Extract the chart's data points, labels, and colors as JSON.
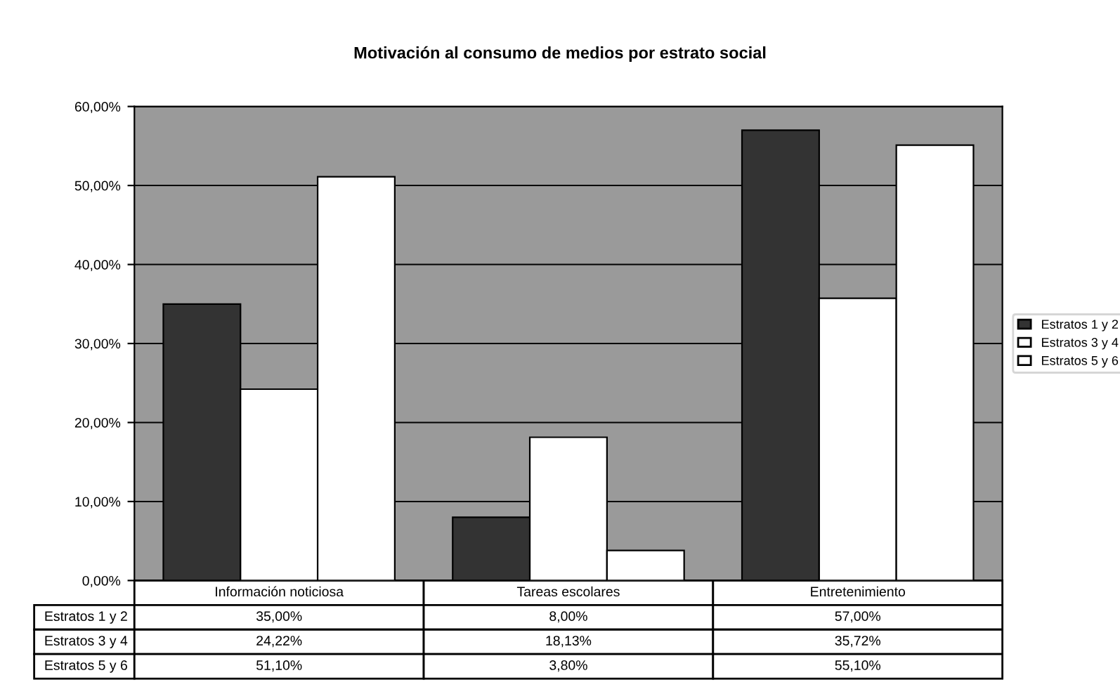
{
  "chart_data": {
    "type": "bar",
    "title": "Motivación al consumo de medios por estrato social",
    "categories": [
      "Información noticiosa",
      "Tareas escolares",
      "Entretenimiento"
    ],
    "series": [
      {
        "name": "Estratos 1 y 2",
        "color": "#333333",
        "values": [
          35.0,
          8.0,
          57.0
        ],
        "value_labels": [
          "35,00%",
          "8,00%",
          "57,00%"
        ]
      },
      {
        "name": "Estratos 3 y 4",
        "color": "#ffffff",
        "values": [
          24.22,
          18.13,
          35.72
        ],
        "value_labels": [
          "24,22%",
          "18,13%",
          "35,72%"
        ]
      },
      {
        "name": "Estratos 5 y 6",
        "color": "#ffffff",
        "values": [
          51.1,
          3.8,
          55.1
        ],
        "value_labels": [
          "51,10%",
          "3,80%",
          "55,10%"
        ]
      }
    ],
    "ylim": [
      0,
      60
    ],
    "yticks": [
      {
        "value": 0,
        "label": "0,00%"
      },
      {
        "value": 10,
        "label": "10,00%"
      },
      {
        "value": 20,
        "label": "20,00%"
      },
      {
        "value": 30,
        "label": "30,00%"
      },
      {
        "value": 40,
        "label": "40,00%"
      },
      {
        "value": 50,
        "label": "50,00%"
      },
      {
        "value": 60,
        "label": "60,00%"
      }
    ],
    "grid": "y",
    "legend": "right"
  }
}
